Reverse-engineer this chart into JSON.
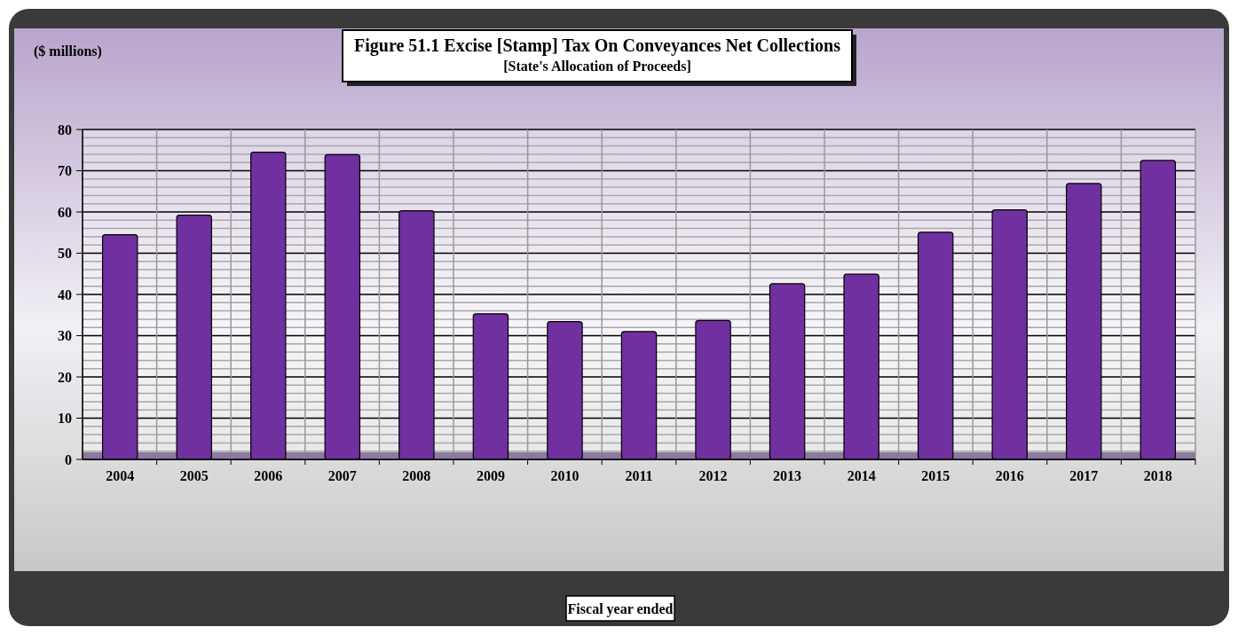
{
  "chart_data": {
    "type": "bar",
    "title": "Figure  51.1  Excise [Stamp] Tax On Conveyances Net Collections",
    "subtitle": "[State's Allocation of Proceeds]",
    "ylabel": "($ millions)",
    "annotations": [
      "Fiscal year ended"
    ],
    "categories": [
      "2004",
      "2005",
      "2006",
      "2007",
      "2008",
      "2009",
      "2010",
      "2011",
      "2012",
      "2013",
      "2014",
      "2015",
      "2016",
      "2017",
      "2018"
    ],
    "values": [
      54.5,
      59.2,
      74.5,
      73.9,
      60.3,
      35.3,
      33.4,
      31.0,
      33.7,
      42.6,
      44.9,
      55.1,
      60.5,
      66.9,
      72.5
    ],
    "color": "#7030a0",
    "ylim": [
      0,
      80
    ],
    "yticks": [
      0,
      10,
      20,
      30,
      40,
      50,
      60,
      70,
      80
    ],
    "grid": true
  }
}
